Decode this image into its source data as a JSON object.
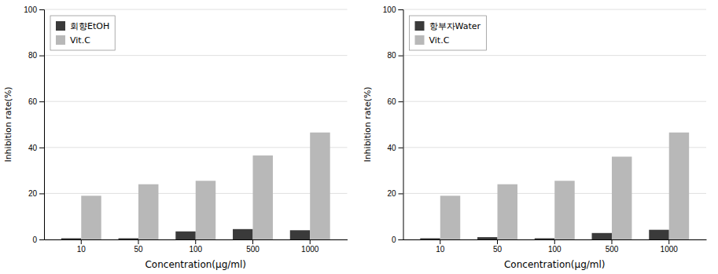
{
  "chart_data": [
    {
      "type": "bar",
      "xlabel": "Concentration(μg/ml)",
      "ylabel": "Inhibition rate(%)",
      "categories": [
        "10",
        "50",
        "100",
        "500",
        "1000"
      ],
      "series": [
        {
          "name": "회향EtOH",
          "color": "#3a3a3a",
          "values": [
            0.5,
            0.5,
            3.5,
            4.5,
            4.0
          ]
        },
        {
          "name": "Vit.C",
          "color": "#b8b8b8",
          "values": [
            19.0,
            24.0,
            25.5,
            36.5,
            46.5
          ]
        }
      ],
      "ylim": [
        0,
        100
      ],
      "yticks": [
        0,
        20,
        40,
        60,
        80,
        100
      ],
      "grid": true,
      "legend": "top-left"
    },
    {
      "type": "bar",
      "xlabel": "Concentration(μg/ml)",
      "ylabel": "Inhibition rate(%)",
      "categories": [
        "10",
        "50",
        "100",
        "500",
        "1000"
      ],
      "series": [
        {
          "name": "항부자Water",
          "color": "#3a3a3a",
          "values": [
            0.5,
            1.0,
            0.5,
            2.8,
            4.2
          ]
        },
        {
          "name": "Vit.C",
          "color": "#b8b8b8",
          "values": [
            19.0,
            24.0,
            25.5,
            36.0,
            46.5
          ]
        }
      ],
      "ylim": [
        0,
        100
      ],
      "yticks": [
        0,
        20,
        40,
        60,
        80,
        100
      ],
      "grid": true,
      "legend": "top-left"
    }
  ]
}
